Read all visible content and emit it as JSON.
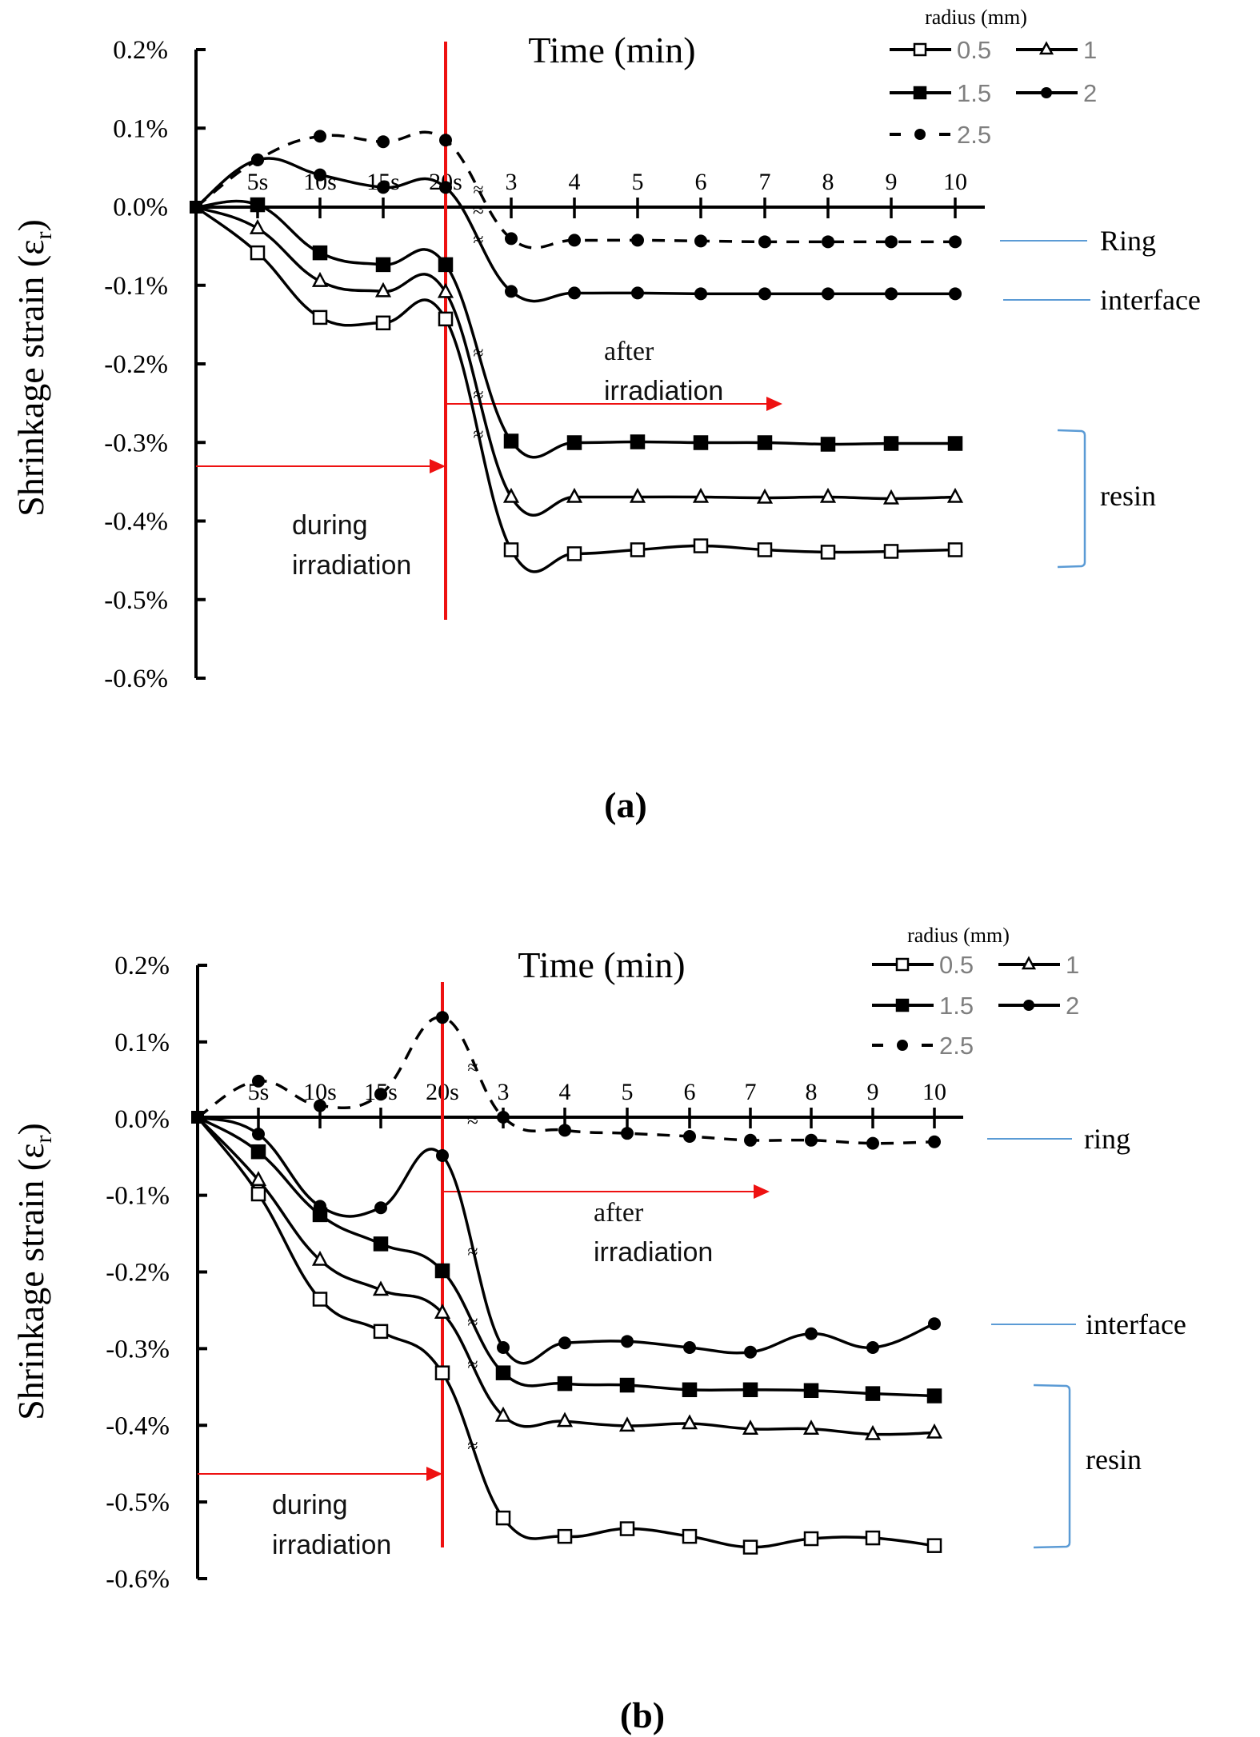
{
  "colors": {
    "series": "#000000",
    "irradiation_marker": "#ee1111",
    "annotation_line": "#5b9bd5",
    "legend_text": "#7f7f7f"
  },
  "chart_data": [
    {
      "type": "line",
      "panel_label": "(a)",
      "title": "Time (min)",
      "ylabel": "Shrinkage strain (ε",
      "ylabel_subscript": "r",
      "ylabel_close": ")",
      "xlabel": "Time (min)",
      "ylim": [
        -0.6,
        0.2
      ],
      "y_unit": "%",
      "yticks": [
        "0.2%",
        "0.1%",
        "0.0%",
        "-0.1%",
        "-0.2%",
        "-0.3%",
        "-0.4%",
        "-0.5%",
        "-0.6%"
      ],
      "x": [
        "0",
        "5s",
        "10s",
        "15s",
        "20s",
        "3",
        "4",
        "5",
        "6",
        "7",
        "8",
        "9",
        "10"
      ],
      "xtick_labels": [
        "5s",
        "10s",
        "15s",
        "20s",
        "3",
        "4",
        "5",
        "6",
        "7",
        "8",
        "9",
        "10"
      ],
      "axis_break_symbol": "≈",
      "legend": {
        "title": "radius (mm)",
        "placement": "top-right"
      },
      "series": [
        {
          "name": "0.5",
          "marker": "square-open",
          "dashed": false,
          "values": [
            0,
            -0.058,
            -0.14,
            -0.147,
            -0.142,
            -0.435,
            -0.44,
            -0.435,
            -0.43,
            -0.435,
            -0.438,
            -0.437,
            -0.435
          ]
        },
        {
          "name": "1",
          "marker": "triangle-open",
          "dashed": false,
          "values": [
            0,
            -0.027,
            -0.094,
            -0.107,
            -0.108,
            -0.368,
            -0.368,
            -0.368,
            -0.368,
            -0.369,
            -0.368,
            -0.37,
            -0.368
          ]
        },
        {
          "name": "1.5",
          "marker": "square-filled",
          "dashed": false,
          "values": [
            0,
            0.003,
            -0.058,
            -0.073,
            -0.073,
            -0.297,
            -0.299,
            -0.298,
            -0.299,
            -0.299,
            -0.301,
            -0.3,
            -0.3
          ]
        },
        {
          "name": "2",
          "marker": "circle-filled",
          "dashed": false,
          "values": [
            0,
            0.06,
            0.041,
            0.025,
            0.025,
            -0.107,
            -0.109,
            -0.109,
            -0.11,
            -0.11,
            -0.11,
            -0.11,
            -0.11
          ]
        },
        {
          "name": "2.5",
          "marker": "circle-filled",
          "dashed": true,
          "values": [
            0,
            0.06,
            0.09,
            0.083,
            0.085,
            -0.04,
            -0.042,
            -0.042,
            -0.043,
            -0.044,
            -0.044,
            -0.044,
            -0.044
          ]
        }
      ],
      "annotations": {
        "ring": "Ring",
        "interface": "interface",
        "resin": "resin",
        "during_line1": "during",
        "during_line2": "irradiation",
        "after_line1": "after",
        "after_line2": "irradiation"
      }
    },
    {
      "type": "line",
      "panel_label": "(b)",
      "title": "Time (min)",
      "ylabel": "Shrinkage strain (ε",
      "ylabel_subscript": "r",
      "ylabel_close": ")",
      "xlabel": "Time (min)",
      "ylim": [
        -0.6,
        0.2
      ],
      "y_unit": "%",
      "yticks": [
        "0.2%",
        "0.1%",
        "0.0%",
        "-0.1%",
        "-0.2%",
        "-0.3%",
        "-0.4%",
        "-0.5%",
        "-0.6%"
      ],
      "x": [
        "0",
        "5s",
        "10s",
        "15s",
        "20s",
        "3",
        "4",
        "5",
        "6",
        "7",
        "8",
        "9",
        "10"
      ],
      "xtick_labels": [
        "5s",
        "10s",
        "15s",
        "20s",
        "3",
        "4",
        "5",
        "6",
        "7",
        "8",
        "9",
        "10"
      ],
      "axis_break_symbol": "≈",
      "legend": {
        "title": "radius (mm)",
        "placement": "top-right"
      },
      "series": [
        {
          "name": "0.5",
          "marker": "square-open",
          "dashed": false,
          "values": [
            0,
            -0.1,
            -0.237,
            -0.279,
            -0.333,
            -0.522,
            -0.546,
            -0.536,
            -0.546,
            -0.56,
            -0.549,
            -0.548,
            -0.558
          ]
        },
        {
          "name": "1",
          "marker": "triangle-open",
          "dashed": false,
          "values": [
            0,
            -0.082,
            -0.186,
            -0.225,
            -0.255,
            -0.389,
            -0.396,
            -0.402,
            -0.399,
            -0.406,
            -0.406,
            -0.413,
            -0.411
          ]
        },
        {
          "name": "1.5",
          "marker": "square-filled",
          "dashed": false,
          "values": [
            0,
            -0.045,
            -0.127,
            -0.165,
            -0.2,
            -0.333,
            -0.347,
            -0.349,
            -0.355,
            -0.355,
            -0.356,
            -0.36,
            -0.363
          ]
        },
        {
          "name": "2",
          "marker": "circle-filled",
          "dashed": false,
          "values": [
            0,
            -0.022,
            -0.116,
            -0.118,
            -0.05,
            -0.3,
            -0.294,
            -0.292,
            -0.3,
            -0.306,
            -0.282,
            -0.3,
            -0.269
          ]
        },
        {
          "name": "2.5",
          "marker": "circle-filled",
          "dashed": true,
          "values": [
            0,
            0.047,
            0.015,
            0.03,
            0.13,
            0.0,
            -0.017,
            -0.021,
            -0.025,
            -0.03,
            -0.03,
            -0.034,
            -0.032
          ]
        }
      ],
      "annotations": {
        "ring": "ring",
        "interface": "interface",
        "resin": "resin",
        "during_line1": "during",
        "during_line2": "irradiation",
        "after_line1": "after",
        "after_line2": "irradiation"
      }
    }
  ]
}
